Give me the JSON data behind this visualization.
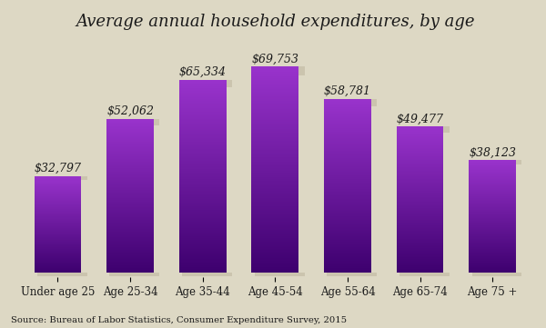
{
  "categories": [
    "Under age 25",
    "Age 25-34",
    "Age 35-44",
    "Age 45-54",
    "Age 55-64",
    "Age 65-74",
    "Age 75 +"
  ],
  "values": [
    32797,
    52062,
    65334,
    69753,
    58781,
    49477,
    38123
  ],
  "labels": [
    "$32,797",
    "$52,062",
    "$65,334",
    "$69,753",
    "$58,781",
    "$49,477",
    "$38,123"
  ],
  "bar_color_top": "#9933cc",
  "bar_color_bottom": "#3d006e",
  "bar_color_mid": "#7a20b0",
  "shadow_color": "#c0b8a0",
  "background_color": "#ddd8c4",
  "title": "Average annual household expenditures, by age",
  "title_fontsize": 13,
  "label_fontsize": 9,
  "tick_fontsize": 8.5,
  "source_text": "Source: Bureau of Labor Statistics, Consumer Expenditure Survey, 2015",
  "ylim": [
    0,
    80000
  ],
  "bar_width": 0.65
}
